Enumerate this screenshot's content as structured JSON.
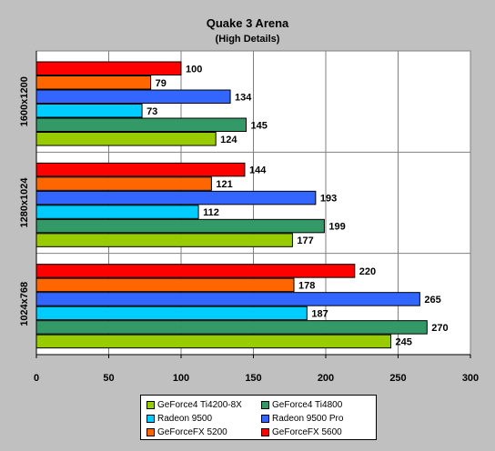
{
  "chart_data": {
    "type": "bar",
    "orientation": "horizontal",
    "title": "Quake 3 Arena",
    "subtitle": "(High Details)",
    "categories": [
      "1600x1200",
      "1280x1024",
      "1024x768"
    ],
    "xlim": [
      0,
      300
    ],
    "xticks": [
      0,
      50,
      100,
      150,
      200,
      250,
      300
    ],
    "grid": true,
    "legend_position": "bottom",
    "series": [
      {
        "name": "GeForce4 Ti4200-8X",
        "color": "#99cc00",
        "values": [
          124,
          177,
          245
        ]
      },
      {
        "name": "GeForce4 Ti4800",
        "color": "#339966",
        "values": [
          145,
          199,
          270
        ]
      },
      {
        "name": "Radeon 9500",
        "color": "#00ccff",
        "values": [
          73,
          112,
          187
        ]
      },
      {
        "name": "Radeon 9500 Pro",
        "color": "#3366ff",
        "values": [
          134,
          193,
          265
        ]
      },
      {
        "name": "GeForceFX 5200",
        "color": "#ff6600",
        "values": [
          79,
          121,
          178
        ]
      },
      {
        "name": "GeForceFX 5600",
        "color": "#ff0000",
        "values": [
          100,
          144,
          220
        ]
      }
    ]
  }
}
